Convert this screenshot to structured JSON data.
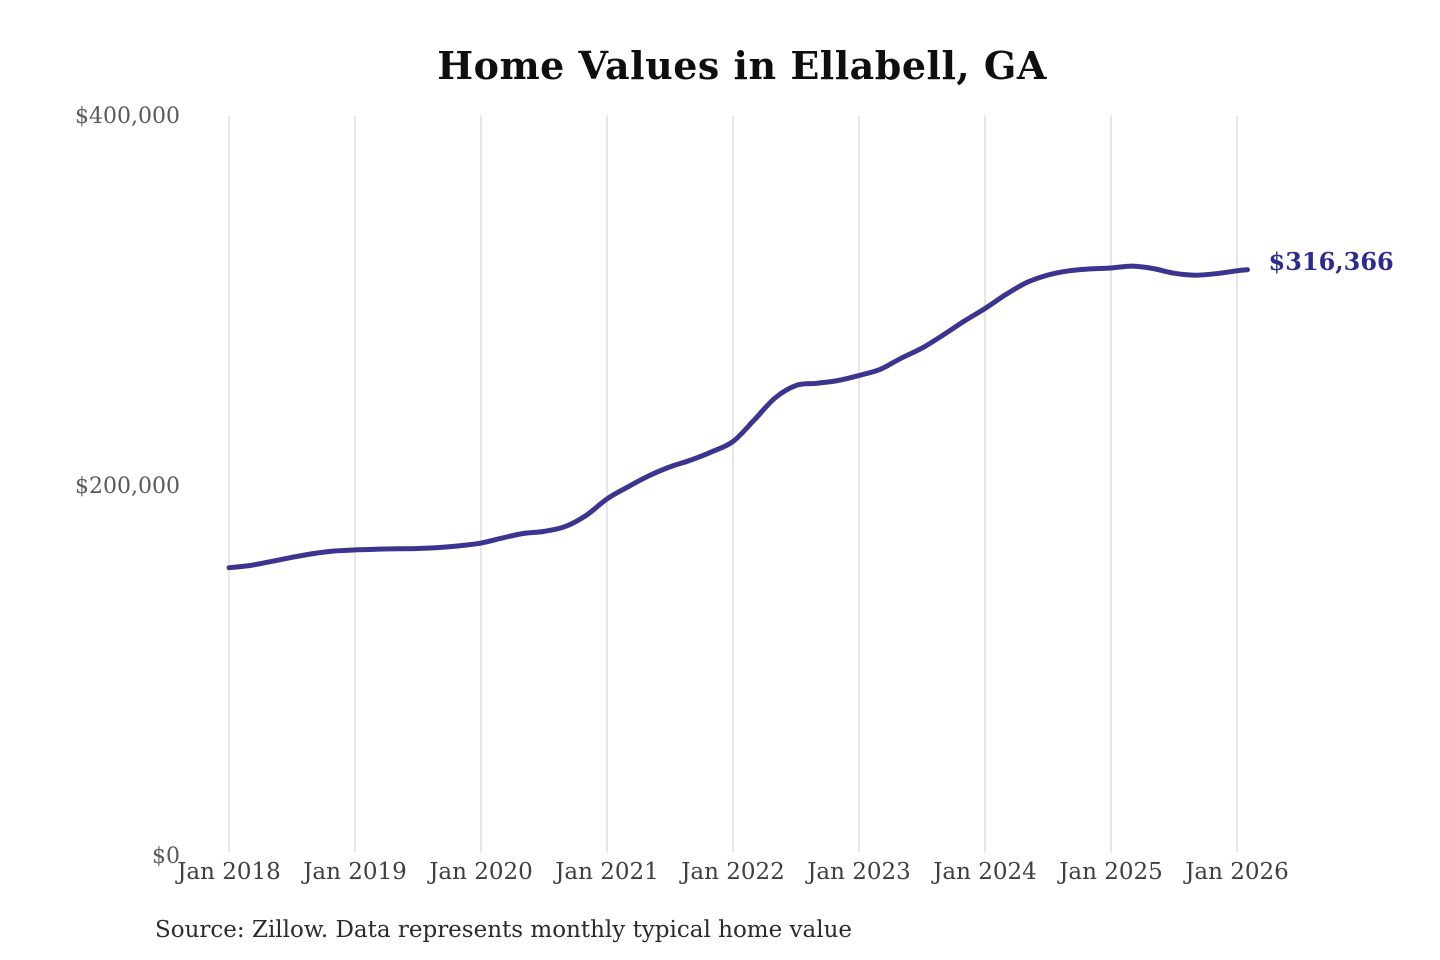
{
  "title": "Home Values in Ellabell, GA",
  "source_note": "Source: Zillow. Data represents monthly typical home value",
  "colors": {
    "line": "#3b3590",
    "end_label": "#2e2b8f",
    "gridline": "#cccccc",
    "y_tick_text": "#595959",
    "x_tick_text": "#3f3f3f",
    "title_text": "#0f0f0f",
    "source_text": "#2b2b2b",
    "background": "#ffffff"
  },
  "chart_data": {
    "type": "line",
    "title": "Home Values in Ellabell, GA",
    "xlabel": "",
    "ylabel": "",
    "ylim": [
      0,
      400000
    ],
    "grid": "vertical-only",
    "legend": "none",
    "end_label": "$316,366",
    "end_value": 316366,
    "x_tick_labels": [
      "Jan 2018",
      "Jan 2019",
      "Jan 2020",
      "Jan 2021",
      "Jan 2022",
      "Jan 2023",
      "Jan 2024",
      "Jan 2025",
      "Jan 2026"
    ],
    "y_ticks": [
      {
        "label": "$0",
        "value": 0
      },
      {
        "label": "$200,000",
        "value": 200000
      },
      {
        "label": "$400,000",
        "value": 400000
      }
    ],
    "series": [
      {
        "name": "Monthly typical home value",
        "points": [
          {
            "date": "2018-01",
            "value": 155300
          },
          {
            "date": "2018-03",
            "value": 156500
          },
          {
            "date": "2018-05",
            "value": 158600
          },
          {
            "date": "2018-07",
            "value": 160900
          },
          {
            "date": "2018-09",
            "value": 162900
          },
          {
            "date": "2018-11",
            "value": 164300
          },
          {
            "date": "2019-01",
            "value": 164900
          },
          {
            "date": "2019-03",
            "value": 165300
          },
          {
            "date": "2019-05",
            "value": 165500
          },
          {
            "date": "2019-07",
            "value": 165700
          },
          {
            "date": "2019-09",
            "value": 166200
          },
          {
            "date": "2019-11",
            "value": 167200
          },
          {
            "date": "2020-01",
            "value": 168600
          },
          {
            "date": "2020-03",
            "value": 171300
          },
          {
            "date": "2020-05",
            "value": 173800
          },
          {
            "date": "2020-07",
            "value": 174900
          },
          {
            "date": "2020-09",
            "value": 177500
          },
          {
            "date": "2020-11",
            "value": 183500
          },
          {
            "date": "2021-01",
            "value": 192500
          },
          {
            "date": "2021-03",
            "value": 199000
          },
          {
            "date": "2021-05",
            "value": 205000
          },
          {
            "date": "2021-07",
            "value": 209800
          },
          {
            "date": "2021-09",
            "value": 213500
          },
          {
            "date": "2021-11",
            "value": 218000
          },
          {
            "date": "2022-01",
            "value": 223500
          },
          {
            "date": "2022-03",
            "value": 235000
          },
          {
            "date": "2022-05",
            "value": 247000
          },
          {
            "date": "2022-07",
            "value": 253800
          },
          {
            "date": "2022-09",
            "value": 255000
          },
          {
            "date": "2022-11",
            "value": 256500
          },
          {
            "date": "2023-01",
            "value": 259200
          },
          {
            "date": "2023-03",
            "value": 262500
          },
          {
            "date": "2023-05",
            "value": 268500
          },
          {
            "date": "2023-07",
            "value": 274000
          },
          {
            "date": "2023-09",
            "value": 281000
          },
          {
            "date": "2023-11",
            "value": 288500
          },
          {
            "date": "2024-01",
            "value": 295400
          },
          {
            "date": "2024-03",
            "value": 303000
          },
          {
            "date": "2024-05",
            "value": 309500
          },
          {
            "date": "2024-07",
            "value": 313500
          },
          {
            "date": "2024-09",
            "value": 315800
          },
          {
            "date": "2024-11",
            "value": 316800
          },
          {
            "date": "2025-01",
            "value": 317300
          },
          {
            "date": "2025-03",
            "value": 318300
          },
          {
            "date": "2025-05",
            "value": 317000
          },
          {
            "date": "2025-07",
            "value": 314500
          },
          {
            "date": "2025-09",
            "value": 313400
          },
          {
            "date": "2025-11",
            "value": 314200
          },
          {
            "date": "2026-01",
            "value": 315800
          },
          {
            "date": "2026-02",
            "value": 316366
          }
        ]
      }
    ]
  }
}
